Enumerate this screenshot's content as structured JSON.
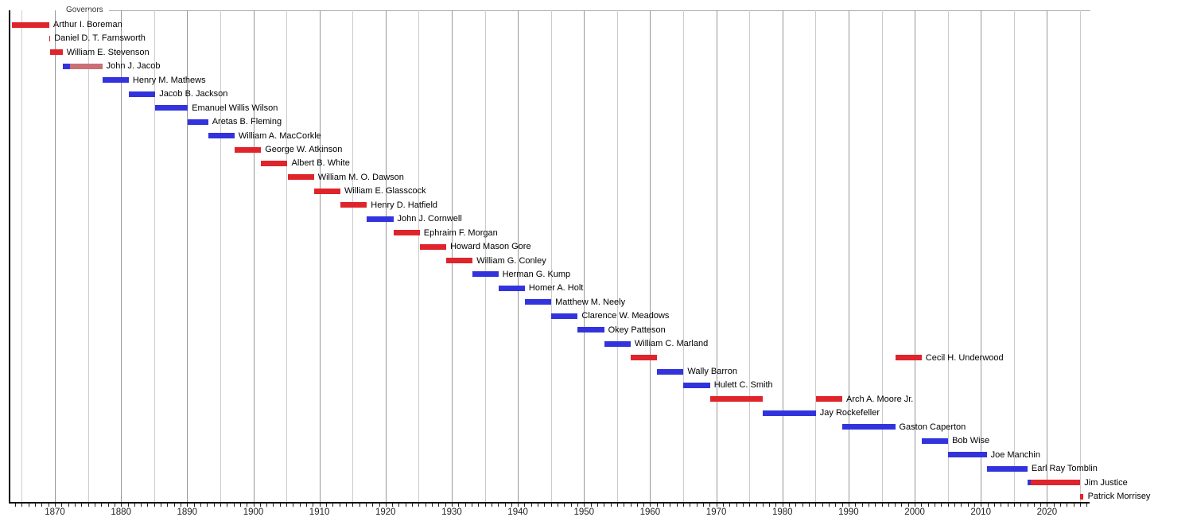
{
  "chart_data": {
    "type": "bar",
    "subtype": "timeline-gantt",
    "title": "Governors",
    "xlabel": "",
    "ylabel": "",
    "x_axis": {
      "min": 1863.2,
      "max": 2026.3,
      "tick_labels": [
        "1870",
        "1880",
        "1890",
        "1900",
        "1910",
        "1920",
        "1930",
        "1940",
        "1950",
        "1960",
        "1970",
        "1980",
        "1990",
        "2000",
        "2010",
        "2020"
      ],
      "decade_label_step": 10,
      "gridline_step_years": 5,
      "minor_tick_step_years": 1,
      "grid_on": true
    },
    "party_colors": {
      "R": "#e0242b",
      "D": "#3333dd",
      "I": "#c96f75"
    },
    "rows": [
      {
        "name": "Arthur I. Boreman",
        "segments": [
          {
            "party": "R",
            "start": 1863.47,
            "end": 1869.15
          }
        ]
      },
      {
        "name": "Daniel D. T. Farnsworth",
        "segments": [
          {
            "party": "R",
            "start": 1869.15,
            "end": 1869.3
          }
        ]
      },
      {
        "name": "William E. Stevenson",
        "segments": [
          {
            "party": "R",
            "start": 1869.3,
            "end": 1871.17
          }
        ]
      },
      {
        "name": "John J. Jacob",
        "segments": [
          {
            "party": "D",
            "start": 1871.17,
            "end": 1872.3
          },
          {
            "party": "I",
            "start": 1872.3,
            "end": 1877.17
          }
        ]
      },
      {
        "name": "Henry M. Mathews",
        "segments": [
          {
            "party": "D",
            "start": 1877.17,
            "end": 1881.17
          }
        ]
      },
      {
        "name": "Jacob B. Jackson",
        "segments": [
          {
            "party": "D",
            "start": 1881.17,
            "end": 1885.17
          }
        ]
      },
      {
        "name": "Emanuel Willis Wilson",
        "segments": [
          {
            "party": "D",
            "start": 1885.17,
            "end": 1890.1
          }
        ]
      },
      {
        "name": "Aretas B. Fleming",
        "segments": [
          {
            "party": "D",
            "start": 1890.1,
            "end": 1893.17
          }
        ]
      },
      {
        "name": "William A. MacCorkle",
        "segments": [
          {
            "party": "D",
            "start": 1893.17,
            "end": 1897.17
          }
        ]
      },
      {
        "name": "George W. Atkinson",
        "segments": [
          {
            "party": "R",
            "start": 1897.17,
            "end": 1901.17
          }
        ]
      },
      {
        "name": "Albert B. White",
        "segments": [
          {
            "party": "R",
            "start": 1901.17,
            "end": 1905.17
          }
        ]
      },
      {
        "name": "William M. O. Dawson",
        "segments": [
          {
            "party": "R",
            "start": 1905.17,
            "end": 1909.17
          }
        ]
      },
      {
        "name": "William E. Glasscock",
        "segments": [
          {
            "party": "R",
            "start": 1909.17,
            "end": 1913.17
          }
        ]
      },
      {
        "name": "Henry D. Hatfield",
        "segments": [
          {
            "party": "R",
            "start": 1913.17,
            "end": 1917.17
          }
        ]
      },
      {
        "name": "John J. Cornwell",
        "segments": [
          {
            "party": "D",
            "start": 1917.17,
            "end": 1921.17
          }
        ]
      },
      {
        "name": "Ephraim F. Morgan",
        "segments": [
          {
            "party": "R",
            "start": 1921.17,
            "end": 1925.17
          }
        ]
      },
      {
        "name": "Howard Mason Gore",
        "segments": [
          {
            "party": "R",
            "start": 1925.17,
            "end": 1929.17
          }
        ]
      },
      {
        "name": "William G. Conley",
        "segments": [
          {
            "party": "R",
            "start": 1929.17,
            "end": 1933.17
          }
        ]
      },
      {
        "name": "Herman G. Kump",
        "segments": [
          {
            "party": "D",
            "start": 1933.17,
            "end": 1937.05
          }
        ]
      },
      {
        "name": "Homer A. Holt",
        "segments": [
          {
            "party": "D",
            "start": 1937.05,
            "end": 1941.05
          }
        ]
      },
      {
        "name": "Matthew M. Neely",
        "segments": [
          {
            "party": "D",
            "start": 1941.05,
            "end": 1945.05
          }
        ]
      },
      {
        "name": "Clarence W. Meadows",
        "segments": [
          {
            "party": "D",
            "start": 1945.05,
            "end": 1949.05
          }
        ]
      },
      {
        "name": "Okey Patteson",
        "segments": [
          {
            "party": "D",
            "start": 1949.05,
            "end": 1953.05
          }
        ]
      },
      {
        "name": "William C. Marland",
        "segments": [
          {
            "party": "D",
            "start": 1953.05,
            "end": 1957.05
          }
        ]
      },
      {
        "name": "Cecil H. Underwood",
        "segments": [
          {
            "party": "R",
            "start": 1957.05,
            "end": 1961.05
          },
          {
            "party": "R",
            "start": 1997.05,
            "end": 2001.05
          }
        ]
      },
      {
        "name": "Wally Barron",
        "segments": [
          {
            "party": "D",
            "start": 1961.05,
            "end": 1965.05
          }
        ]
      },
      {
        "name": "Hulett C. Smith",
        "segments": [
          {
            "party": "D",
            "start": 1965.05,
            "end": 1969.05
          }
        ]
      },
      {
        "name": "Arch A. Moore Jr.",
        "segments": [
          {
            "party": "R",
            "start": 1969.05,
            "end": 1977.05
          },
          {
            "party": "R",
            "start": 1985.05,
            "end": 1989.05
          }
        ]
      },
      {
        "name": "Jay Rockefeller",
        "segments": [
          {
            "party": "D",
            "start": 1977.05,
            "end": 1985.05
          }
        ]
      },
      {
        "name": "Gaston Caperton",
        "segments": [
          {
            "party": "D",
            "start": 1989.05,
            "end": 1997.05
          }
        ]
      },
      {
        "name": "Bob Wise",
        "segments": [
          {
            "party": "D",
            "start": 2001.05,
            "end": 2005.05
          }
        ]
      },
      {
        "name": "Joe Manchin",
        "segments": [
          {
            "party": "D",
            "start": 2005.05,
            "end": 2010.88
          }
        ]
      },
      {
        "name": "Earl Ray Tomblin",
        "segments": [
          {
            "party": "D",
            "start": 2010.88,
            "end": 2017.05
          }
        ]
      },
      {
        "name": "Jim Justice",
        "segments": [
          {
            "party": "D",
            "start": 2017.05,
            "end": 2017.6
          },
          {
            "party": "R",
            "start": 2017.6,
            "end": 2025.04
          }
        ]
      },
      {
        "name": "Patrick Morrisey",
        "segments": [
          {
            "party": "R",
            "start": 2025.04,
            "end": 2025.55
          }
        ]
      }
    ]
  }
}
